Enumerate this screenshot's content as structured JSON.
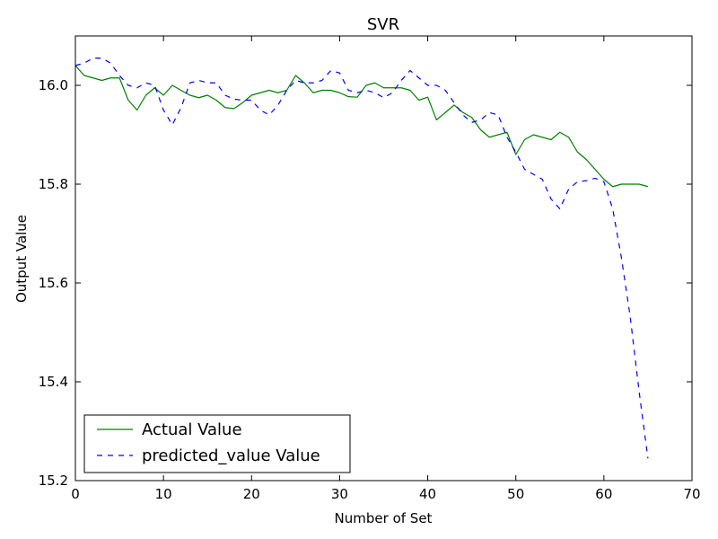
{
  "chart_data": {
    "type": "line",
    "title": "SVR",
    "xlabel": "Number of Set",
    "ylabel": "Output Value",
    "xlim": [
      0,
      70
    ],
    "ylim": [
      15.2,
      16.1
    ],
    "xticks": [
      "0",
      "10",
      "20",
      "30",
      "40",
      "50",
      "60",
      "70"
    ],
    "yticks": [
      "15.2",
      "15.4",
      "15.6",
      "15.8",
      "16.0"
    ],
    "legend_position": "lower-left",
    "grid": false,
    "series": [
      {
        "name": "Actual Value",
        "color": "#008000",
        "dash": "solid",
        "x": [
          0,
          1,
          2,
          3,
          4,
          5,
          6,
          7,
          8,
          9,
          10,
          11,
          12,
          13,
          14,
          15,
          16,
          17,
          18,
          19,
          20,
          21,
          22,
          23,
          24,
          25,
          26,
          27,
          28,
          29,
          30,
          31,
          32,
          33,
          34,
          35,
          36,
          37,
          38,
          39,
          40,
          41,
          42,
          43,
          44,
          45,
          46,
          47,
          48,
          49,
          50,
          51,
          52,
          53,
          54,
          55,
          56,
          57,
          58,
          59,
          60,
          61,
          62,
          63,
          64,
          65
        ],
        "y": [
          16.04,
          16.02,
          16.015,
          16.01,
          16.015,
          16.015,
          15.97,
          15.95,
          15.98,
          15.995,
          15.98,
          16.0,
          15.99,
          15.98,
          15.975,
          15.98,
          15.97,
          15.955,
          15.953,
          15.965,
          15.98,
          15.985,
          15.99,
          15.985,
          15.99,
          16.02,
          16.005,
          15.985,
          15.99,
          15.99,
          15.985,
          15.977,
          15.976,
          16.0,
          16.005,
          15.995,
          15.995,
          15.995,
          15.99,
          15.97,
          15.976,
          15.93,
          15.945,
          15.96,
          15.945,
          15.935,
          15.91,
          15.895,
          15.9,
          15.905,
          15.86,
          15.89,
          15.9,
          15.895,
          15.89,
          15.905,
          15.895,
          15.865,
          15.85,
          15.83,
          15.81,
          15.795,
          15.8,
          15.8,
          15.8,
          15.795
        ]
      },
      {
        "name": "predicted_value Value",
        "color": "#0000ff",
        "dash": "dashed",
        "x": [
          0,
          1,
          2,
          3,
          4,
          5,
          6,
          7,
          8,
          9,
          10,
          11,
          12,
          13,
          14,
          15,
          16,
          17,
          18,
          19,
          20,
          21,
          22,
          23,
          24,
          25,
          26,
          27,
          28,
          29,
          30,
          31,
          32,
          33,
          34,
          35,
          36,
          37,
          38,
          39,
          40,
          41,
          42,
          43,
          44,
          45,
          46,
          47,
          48,
          49,
          50,
          51,
          52,
          53,
          54,
          55,
          56,
          57,
          58,
          59,
          60,
          61,
          62,
          63,
          64,
          65
        ],
        "y": [
          16.04,
          16.045,
          16.055,
          16.055,
          16.045,
          16.02,
          16.0,
          15.995,
          16.005,
          16.0,
          15.95,
          15.92,
          15.955,
          16.005,
          16.01,
          16.005,
          16.005,
          15.98,
          15.972,
          15.97,
          15.97,
          15.95,
          15.94,
          15.96,
          15.99,
          16.01,
          16.005,
          16.005,
          16.01,
          16.03,
          16.025,
          15.99,
          15.985,
          15.99,
          15.985,
          15.975,
          15.985,
          16.01,
          16.03,
          16.015,
          16.0,
          16.0,
          15.99,
          15.965,
          15.94,
          15.925,
          15.93,
          15.945,
          15.94,
          15.895,
          15.865,
          15.83,
          15.82,
          15.81,
          15.77,
          15.75,
          15.79,
          15.805,
          15.807,
          15.812,
          15.805,
          15.75,
          15.65,
          15.53,
          15.38,
          15.245
        ]
      }
    ]
  }
}
